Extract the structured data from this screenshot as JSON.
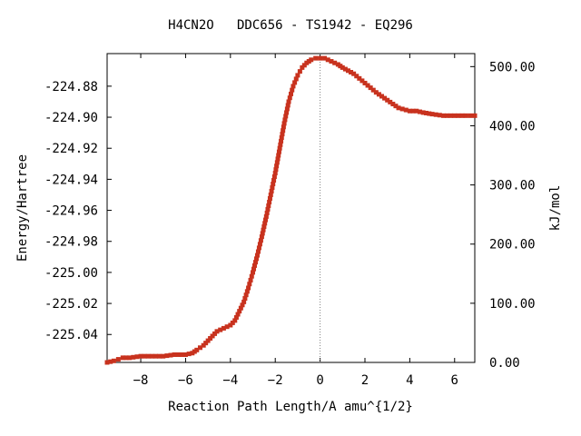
{
  "chart_data": {
    "type": "line",
    "title": "H4CN2O   DDC656 - TS1942 - EQ296",
    "xlabel": "Reaction Path Length/A amu^{1/2}",
    "ylabel": "Energy/Hartree",
    "y2label": "kJ/mol",
    "xlim": [
      -9.5,
      6.9
    ],
    "ylim": [
      -225.058,
      -224.859
    ],
    "y2lim": [
      0,
      522
    ],
    "xticks": [
      -8,
      -6,
      -4,
      -2,
      0,
      2,
      4,
      6
    ],
    "xtick_labels": [
      "−8",
      "−6",
      "−4",
      "−2",
      "0",
      "2",
      "4",
      "6"
    ],
    "yticks": [
      -224.88,
      -224.9,
      -224.92,
      -224.94,
      -224.96,
      -224.98,
      -225.0,
      -225.02,
      -225.04
    ],
    "ytick_labels": [
      "-224.88",
      "-224.90",
      "-224.92",
      "-224.94",
      "-224.96",
      "-224.98",
      "-225.00",
      "-225.02",
      "-225.04"
    ],
    "y2ticks": [
      0,
      100,
      200,
      300,
      400,
      500
    ],
    "y2tick_labels": [
      "0.00",
      "100.00",
      "200.00",
      "300.00",
      "400.00",
      "500.00"
    ],
    "ts_marker_x": 0,
    "grid": false,
    "colors": {
      "line": "#00a000",
      "points": "#c8321e",
      "ts_line": "#808080",
      "frame": "#000000"
    },
    "series": [
      {
        "x": [
          -9.5,
          -9.2,
          -9.0,
          -8.8,
          -8.5,
          -8.0,
          -7.5,
          -7.0,
          -6.5,
          -6.0,
          -5.7,
          -5.5,
          -5.2,
          -5.0,
          -4.8,
          -4.6,
          -4.3,
          -4.0,
          -3.8,
          -3.6,
          -3.4,
          -3.2,
          -3.0,
          -2.8,
          -2.6,
          -2.4,
          -2.2,
          -2.0,
          -1.8,
          -1.6,
          -1.4,
          -1.2,
          -1.0,
          -0.8,
          -0.6,
          -0.4,
          -0.2,
          0.0,
          0.2,
          0.5,
          0.8,
          1.0,
          1.5,
          2.0,
          2.5,
          3.0,
          3.5,
          4.0,
          4.3,
          4.6,
          5.0,
          5.5,
          6.0,
          6.5,
          6.9
        ],
        "y": [
          -225.058,
          -225.057,
          -225.056,
          -225.055,
          -225.055,
          -225.054,
          -225.054,
          -225.054,
          -225.053,
          -225.053,
          -225.052,
          -225.05,
          -225.047,
          -225.044,
          -225.041,
          -225.038,
          -225.036,
          -225.034,
          -225.031,
          -225.025,
          -225.019,
          -225.01,
          -225.0,
          -224.989,
          -224.977,
          -224.964,
          -224.95,
          -224.936,
          -224.92,
          -224.904,
          -224.89,
          -224.88,
          -224.873,
          -224.868,
          -224.865,
          -224.863,
          -224.862,
          -224.862,
          -224.862,
          -224.864,
          -224.866,
          -224.868,
          -224.872,
          -224.878,
          -224.884,
          -224.889,
          -224.894,
          -224.896,
          -224.896,
          -224.897,
          -224.898,
          -224.899,
          -224.899,
          -224.899,
          -224.899
        ]
      }
    ]
  }
}
